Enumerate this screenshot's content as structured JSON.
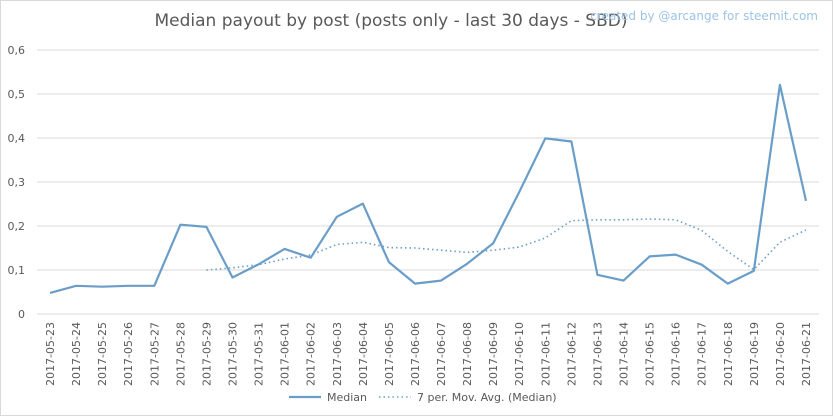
{
  "title": "Median payout by post (posts only - last 30 days - SBD)",
  "credit": "created by @arcange for steemit.com",
  "colors": {
    "series": "#6a9ec9",
    "grid": "#d9d9d9",
    "axis_text": "#595959"
  },
  "chart_data": {
    "type": "line",
    "title": "Median payout by post (posts only - last 30 days - SBD)",
    "xlabel": "",
    "ylabel": "",
    "ylim": [
      0,
      0.6
    ],
    "yticks": [
      "0",
      "0,1",
      "0,2",
      "0,3",
      "0,4",
      "0,5",
      "0,6"
    ],
    "grid": true,
    "legend_position": "bottom",
    "categories": [
      "2017-05-23",
      "2017-05-24",
      "2017-05-25",
      "2017-05-26",
      "2017-05-27",
      "2017-05-28",
      "2017-05-29",
      "2017-05-30",
      "2017-05-31",
      "2017-06-01",
      "2017-06-02",
      "2017-06-03",
      "2017-06-04",
      "2017-06-05",
      "2017-06-06",
      "2017-06-07",
      "2017-06-08",
      "2017-06-09",
      "2017-06-10",
      "2017-06-11",
      "2017-06-12",
      "2017-06-13",
      "2017-06-14",
      "2017-06-15",
      "2017-06-16",
      "2017-06-17",
      "2017-06-18",
      "2017-06-19",
      "2017-06-20",
      "2017-06-21"
    ],
    "series": [
      {
        "name": "Median",
        "style": "solid",
        "values": [
          0.048,
          0.064,
          0.062,
          0.064,
          0.064,
          0.203,
          0.198,
          0.083,
          0.113,
          0.148,
          0.128,
          0.221,
          0.251,
          0.118,
          0.069,
          0.076,
          0.114,
          0.161,
          0.277,
          0.399,
          0.392,
          0.089,
          0.076,
          0.131,
          0.135,
          0.112,
          0.069,
          0.098,
          0.521,
          0.257
        ]
      },
      {
        "name": "7 per. Mov. Avg. (Median)",
        "style": "dotted",
        "values": [
          null,
          null,
          null,
          null,
          null,
          null,
          0.1,
          0.105,
          0.112,
          0.125,
          0.134,
          0.158,
          0.163,
          0.151,
          0.15,
          0.145,
          0.14,
          0.145,
          0.152,
          0.173,
          0.212,
          0.214,
          0.214,
          0.216,
          0.214,
          0.19,
          0.142,
          0.101,
          0.163,
          0.191
        ]
      }
    ]
  }
}
